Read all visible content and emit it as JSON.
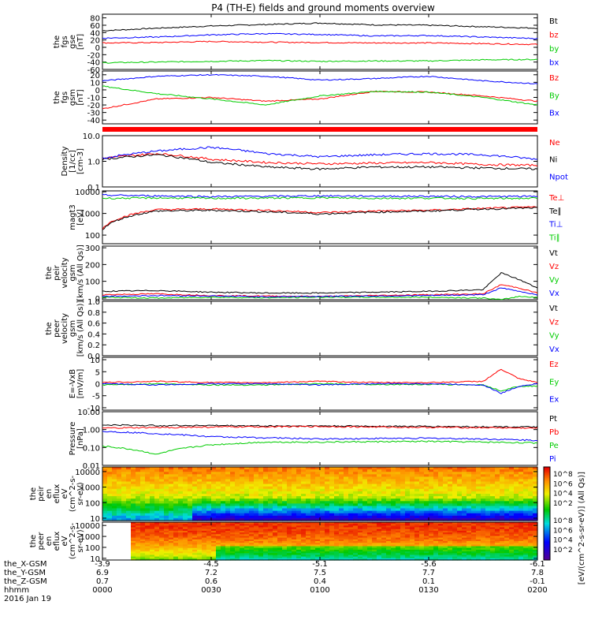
{
  "title": "P4 (TH-E) fields and ground moments overview",
  "date_label": "2016 Jan 19",
  "colorbar_label": "[eV/(cm^2-s-sr-eV)] (All Qs)]",
  "colors": {
    "black": "#000000",
    "red": "#ff0000",
    "blue": "#0000ff",
    "green": "#00cc00",
    "frame": "#000000"
  },
  "orbit": {
    "row_labels": [
      "the_X-GSM",
      "the_Y-GSM",
      "the_Z-GSM",
      "hhmm"
    ],
    "columns": [
      [
        "-3.9",
        "6.9",
        "0.7",
        "0000"
      ],
      [
        "-4.5",
        "7.2",
        "0.6",
        "0030"
      ],
      [
        "-5.1",
        "7.5",
        "0.4",
        "0100"
      ],
      [
        "-5.6",
        "7.7",
        "0.1",
        "0130"
      ],
      [
        "-6.1",
        "7.8",
        "-0.1",
        "0200"
      ]
    ]
  },
  "chart_data": [
    {
      "type": "line",
      "panel": "fgs",
      "ylabel": [
        "the",
        "fgs",
        "gse",
        "[nT]"
      ],
      "ylim": [
        -60,
        90
      ],
      "yticks": [
        "80",
        "60",
        "40",
        "20",
        "0",
        "-20",
        "-40",
        "-60"
      ],
      "x_range_hhmm": [
        "0000",
        "0200"
      ],
      "x": [
        0,
        15,
        30,
        45,
        60,
        75,
        90,
        105,
        120
      ],
      "series": [
        {
          "name": "Bt",
          "color": "#000000",
          "values": [
            45,
            52,
            58,
            62,
            66,
            61,
            60,
            56,
            52
          ]
        },
        {
          "name": "bz",
          "color": "#ff0000",
          "values": [
            12,
            13,
            16,
            14,
            13,
            12,
            12,
            10,
            8
          ]
        },
        {
          "name": "by",
          "color": "#00cc00",
          "values": [
            -42,
            -40,
            -38,
            -36,
            -38,
            -37,
            -37,
            -34,
            -33
          ]
        },
        {
          "name": "bx",
          "color": "#0000ff",
          "values": [
            25,
            28,
            34,
            37,
            35,
            31,
            32,
            28,
            24
          ]
        }
      ]
    },
    {
      "type": "line",
      "panel": "fgs_gsm",
      "ylabel": [
        "the",
        "fgs",
        "gsm",
        "[nT]"
      ],
      "ylim": [
        -45,
        25
      ],
      "yticks": [
        "20",
        "10",
        "0",
        "-10",
        "-20",
        "-30",
        "-40"
      ],
      "x": [
        0,
        15,
        30,
        45,
        60,
        75,
        90,
        105,
        120
      ],
      "series": [
        {
          "name": "Bz",
          "color": "#ff0000",
          "values": [
            -25,
            -12,
            -10,
            -15,
            -12,
            -2,
            -3,
            -8,
            -15
          ]
        },
        {
          "name": "By",
          "color": "#00cc00",
          "values": [
            5,
            -5,
            -12,
            -20,
            -8,
            -2,
            -3,
            -10,
            -20
          ]
        },
        {
          "name": "Bx",
          "color": "#0000ff",
          "values": [
            12,
            18,
            20,
            18,
            13,
            15,
            18,
            12,
            8
          ]
        }
      ]
    },
    {
      "type": "line",
      "panel": "density",
      "ylabel": [
        "Density",
        "[1/cc]",
        "[cm-3]"
      ],
      "yscale": "log",
      "ylim": [
        0.1,
        10
      ],
      "yticks": [
        "10.0",
        "1.0",
        "0.1"
      ],
      "x": [
        0,
        15,
        30,
        45,
        60,
        75,
        90,
        105,
        120
      ],
      "series": [
        {
          "name": "Ne",
          "color": "#ff0000",
          "values": [
            1.3,
            2.0,
            1.2,
            0.9,
            0.8,
            0.85,
            0.9,
            0.75,
            0.7
          ]
        },
        {
          "name": "Ni",
          "color": "#000000",
          "values": [
            1.2,
            1.8,
            0.9,
            0.6,
            0.5,
            0.6,
            0.6,
            0.55,
            0.5
          ]
        },
        {
          "name": "Npot",
          "color": "#0000ff",
          "values": [
            1.3,
            2.5,
            3.5,
            2.0,
            1.5,
            1.8,
            2.0,
            1.8,
            1.2
          ]
        }
      ]
    },
    {
      "type": "line",
      "panel": "temperature",
      "ylabel": [
        "magt3",
        "[eV]"
      ],
      "yscale": "log",
      "ylim": [
        40,
        11000
      ],
      "yticks": [
        "10000",
        "1000",
        "100"
      ],
      "x": [
        0,
        15,
        30,
        45,
        60,
        75,
        90,
        105,
        120
      ],
      "series": [
        {
          "name": "Te⊥",
          "color": "#ff0000",
          "values": [
            200,
            1500,
            1600,
            1400,
            1100,
            1300,
            1400,
            1700,
            2000
          ]
        },
        {
          "name": "Te∥",
          "color": "#000000",
          "values": [
            180,
            1300,
            1400,
            1200,
            950,
            1150,
            1300,
            1600,
            1800
          ]
        },
        {
          "name": "Ti⊥",
          "color": "#0000ff",
          "values": [
            7000,
            6500,
            6000,
            6200,
            6500,
            6300,
            6200,
            6000,
            6200
          ]
        },
        {
          "name": "Ti∥",
          "color": "#00cc00",
          "values": [
            5000,
            5200,
            5000,
            5100,
            5300,
            5000,
            5100,
            4900,
            5000
          ]
        }
      ]
    },
    {
      "type": "line",
      "panel": "peir_velocity",
      "ylabel": [
        "the",
        "peir",
        "velocity",
        "gsm",
        "[km/s (All Qs)]"
      ],
      "ylim": [
        -10,
        310
      ],
      "yticks": [
        "300",
        "200",
        "100",
        "0"
      ],
      "x": [
        0,
        15,
        30,
        45,
        60,
        75,
        90,
        105,
        110,
        115,
        120
      ],
      "series": [
        {
          "name": "Vt",
          "color": "#000000",
          "values": [
            40,
            45,
            35,
            30,
            30,
            35,
            40,
            50,
            150,
            110,
            60
          ]
        },
        {
          "name": "Vz",
          "color": "#ff0000",
          "values": [
            20,
            25,
            15,
            12,
            10,
            15,
            20,
            25,
            80,
            60,
            30
          ]
        },
        {
          "name": "Vy",
          "color": "#00cc00",
          "values": [
            5,
            0,
            5,
            2,
            5,
            5,
            5,
            0,
            -10,
            10,
            5
          ]
        },
        {
          "name": "Vx",
          "color": "#0000ff",
          "values": [
            10,
            15,
            12,
            8,
            10,
            12,
            15,
            20,
            60,
            40,
            20
          ]
        }
      ]
    },
    {
      "type": "line",
      "panel": "peer_velocity",
      "ylabel": [
        "the",
        "peer",
        "velocity",
        "gsm",
        "[km/s (All Qs)]"
      ],
      "ylim": [
        0,
        1
      ],
      "yticks": [
        "1.0",
        "0.8",
        "0.6",
        "0.4",
        "0.2",
        "0.0"
      ],
      "x": [],
      "series": [
        {
          "name": "Vt",
          "color": "#000000",
          "values": []
        },
        {
          "name": "Vz",
          "color": "#ff0000",
          "values": []
        },
        {
          "name": "Vy",
          "color": "#00cc00",
          "values": []
        },
        {
          "name": "Vx",
          "color": "#0000ff",
          "values": []
        }
      ]
    },
    {
      "type": "line",
      "panel": "efield",
      "ylabel": [
        "E=-VxB",
        "[mV/m]"
      ],
      "ylim": [
        -11,
        11
      ],
      "yticks": [
        "10",
        "5",
        "0",
        "-5",
        "-10"
      ],
      "x": [
        0,
        15,
        30,
        45,
        60,
        75,
        90,
        105,
        110,
        115,
        120
      ],
      "series": [
        {
          "name": "Ez",
          "color": "#ff0000",
          "values": [
            0.5,
            1,
            0.5,
            0.5,
            1,
            0.5,
            0.5,
            1,
            6,
            2,
            0.5
          ]
        },
        {
          "name": "Ey",
          "color": "#00cc00",
          "values": [
            -0.5,
            0,
            -0.5,
            -0.5,
            0,
            -0.3,
            -0.3,
            -0.5,
            -3,
            -1,
            -1
          ]
        },
        {
          "name": "Ex",
          "color": "#0000ff",
          "values": [
            0,
            -0.5,
            0,
            0,
            -0.5,
            0,
            0,
            -0.5,
            -4,
            -1,
            0
          ]
        }
      ]
    },
    {
      "type": "line",
      "panel": "pressure",
      "ylabel": [
        "Pressure",
        "[nPa]"
      ],
      "yscale": "log",
      "ylim": [
        0.01,
        10
      ],
      "yticks": [
        "10.00",
        "1.00",
        "0.10",
        "0.01"
      ],
      "x": [
        0,
        15,
        30,
        45,
        60,
        75,
        90,
        105,
        120
      ],
      "series": [
        {
          "name": "Pt",
          "color": "#000000",
          "values": [
            1.8,
            1.7,
            1.7,
            1.6,
            1.6,
            1.55,
            1.5,
            1.45,
            1.4
          ]
        },
        {
          "name": "Pb",
          "color": "#ff0000",
          "values": [
            1.2,
            1.3,
            1.4,
            1.45,
            1.5,
            1.4,
            1.35,
            1.3,
            1.2
          ]
        },
        {
          "name": "Pe",
          "color": "#00cc00",
          "values": [
            0.12,
            0.04,
            0.14,
            0.2,
            0.2,
            0.21,
            0.22,
            0.2,
            0.18
          ]
        },
        {
          "name": "Pi",
          "color": "#0000ff",
          "values": [
            0.8,
            0.6,
            0.4,
            0.35,
            0.3,
            0.32,
            0.33,
            0.3,
            0.25
          ]
        }
      ]
    },
    {
      "type": "heatmap",
      "panel": "peir_eflux",
      "ylabel": [
        "the",
        "peir",
        "en",
        "eflux",
        "eV",
        "(cm^2-s-",
        "sr-eV)"
      ],
      "yscale": "log",
      "ylim": [
        7,
        20000
      ],
      "yticks": [
        "10000",
        "1000",
        "100",
        "10"
      ]
    },
    {
      "type": "heatmap",
      "panel": "peer_eflux",
      "ylabel": [
        "the",
        "peer",
        "en",
        "eflux",
        "eV",
        "(cm^2-s-",
        "sr-eV)"
      ],
      "yscale": "log",
      "ylim": [
        7,
        20000
      ],
      "yticks": [
        "10000",
        "1000",
        "100",
        "10"
      ]
    },
    {
      "type": "colorbar",
      "panel": "eflux_colorbar",
      "ticks_upper": [
        "10^8",
        "10^6",
        "10^4",
        "10^2"
      ],
      "ticks_lower": [
        "10^8",
        "10^6",
        "10^4",
        "10^2"
      ]
    }
  ]
}
